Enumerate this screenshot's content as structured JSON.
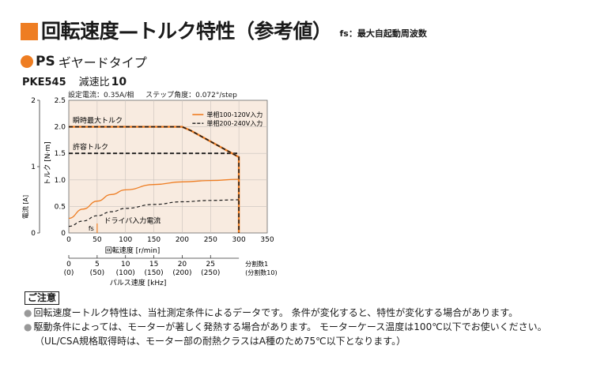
{
  "header": {
    "title": "回転速度—トルク特性（参考値）",
    "fs_note": "fs：最大自起動周波数"
  },
  "series_type": {
    "ps": "PS",
    "label": "ギヤードタイプ"
  },
  "model": {
    "code": "PKE545",
    "ratio_label": "減速比",
    "ratio": "10"
  },
  "conditions": {
    "current": "設定電流：0.35A/相",
    "step_angle": "ステップ角度：0.072°/step"
  },
  "colors": {
    "accent": "#ee7d22",
    "series_100_120": "#ee7d22",
    "series_200_240": "#1a1a1a"
  },
  "chart_data": {
    "type": "line",
    "xlabel": "回転速度 [r/min]",
    "xlim": [
      0,
      350
    ],
    "x_ticks": [
      0,
      50,
      100,
      150,
      200,
      250,
      300,
      350
    ],
    "torque_axis": {
      "label": "トルク [N·m]",
      "ylim": [
        0,
        2.5
      ],
      "ticks": [
        "0",
        "0.5",
        "1.0",
        "1.5",
        "2.0",
        "2.5"
      ]
    },
    "current_axis": {
      "label": "電流 [A]",
      "ylim": [
        0,
        2
      ],
      "ticks": [
        "0",
        "1",
        "2"
      ]
    },
    "legend": {
      "placement": "top-right",
      "entries": [
        "単相100-120V入力",
        "単相200-240V入力"
      ]
    },
    "annotations": {
      "max_torque": "瞬時最大トルク",
      "permissible_torque": "許容トルク",
      "driver_current": "ドライバ入力電流",
      "fs": "fs"
    },
    "series": [
      {
        "name": "単相100-120V入力",
        "kind": "torque",
        "x": [
          0,
          200,
          215,
          300,
          300
        ],
        "y": [
          2.0,
          2.0,
          1.93,
          1.43,
          0
        ]
      },
      {
        "name": "単相200-240V入力",
        "kind": "torque",
        "x": [
          0,
          200,
          215,
          300,
          300
        ],
        "y": [
          2.0,
          2.0,
          1.93,
          1.43,
          0
        ]
      },
      {
        "name": "単相100-120V入力",
        "kind": "current",
        "x": [
          0,
          25,
          50,
          75,
          100,
          150,
          200,
          250,
          300
        ],
        "y": [
          0.22,
          0.36,
          0.48,
          0.58,
          0.65,
          0.73,
          0.77,
          0.79,
          0.81
        ]
      },
      {
        "name": "単相200-240V入力",
        "kind": "current",
        "x": [
          0,
          25,
          50,
          75,
          100,
          150,
          200,
          250,
          300
        ],
        "y": [
          0.1,
          0.18,
          0.26,
          0.32,
          0.37,
          0.43,
          0.47,
          0.49,
          0.5
        ]
      },
      {
        "name": "許容トルク",
        "kind": "permissible",
        "x": [
          0,
          300
        ],
        "y": [
          1.5,
          1.5
        ]
      }
    ],
    "pulse_axis": {
      "label": "パルス速度 [kHz]",
      "ticks": [
        {
          "value": "0",
          "alt": "(0)"
        },
        {
          "value": "5",
          "alt": "(50)"
        },
        {
          "value": "10",
          "alt": "(100)"
        },
        {
          "value": "15",
          "alt": "(150)"
        },
        {
          "value": "20",
          "alt": "(200)"
        },
        {
          "value": "25",
          "alt": "(250)"
        }
      ],
      "div_label": "分割数1",
      "div_alt_label": "(分割数10)"
    }
  },
  "notes": {
    "badge": "ご注意",
    "items": [
      "回転速度ートルク特性は、当社測定条件によるデータです。 条件が変化すると、特性が変化する場合があります。",
      "駆動条件によっては、モーターが著しく発熱する場合があります。 モーターケース温度は100℃以下でお使いください。",
      "（UL/CSA規格取得時は、モーター部の耐熱クラスはA種のため75℃以下となります。）"
    ]
  }
}
